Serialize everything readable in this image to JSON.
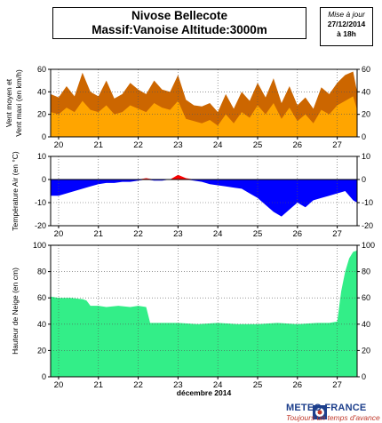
{
  "header": {
    "title_line1": "Nivose Bellecote",
    "title_line2": "Massif:Vanoise Altitude:3000m",
    "update_label": "Mise à jour",
    "update_date": "27/12/2014",
    "update_time": "à 18h"
  },
  "footer": {
    "logo_name": "METEO FRANCE",
    "logo_slogan": "Toujours un temps d'avance",
    "logo_icon": "meteo-france-logo"
  },
  "colors": {
    "wind_max": "#cc6600",
    "wind_mean": "#ffa500",
    "temp_cold": "#0000ff",
    "temp_warm": "#ff0000",
    "snow": "#33ee88"
  },
  "chart_data": [
    {
      "type": "area",
      "id": "wind",
      "ylabel_line1": "Vent moyen et",
      "ylabel_line2": "Vent maxi (en km/h)",
      "ylim": [
        0,
        60
      ],
      "yticks": [
        0,
        20,
        40,
        60
      ],
      "x_day_start": 19.8,
      "x_day_end": 27.5,
      "day_ticks": [
        20,
        21,
        22,
        23,
        24,
        25,
        26,
        27
      ],
      "grid": true,
      "series": [
        {
          "name": "max",
          "x": [
            19.8,
            20.0,
            20.2,
            20.4,
            20.6,
            20.8,
            21.0,
            21.2,
            21.4,
            21.6,
            21.8,
            22.0,
            22.2,
            22.4,
            22.6,
            22.8,
            23.0,
            23.2,
            23.4,
            23.6,
            23.8,
            24.0,
            24.2,
            24.4,
            24.6,
            24.8,
            25.0,
            25.2,
            25.4,
            25.6,
            25.8,
            26.0,
            26.2,
            26.4,
            26.6,
            26.8,
            27.0,
            27.2,
            27.4,
            27.5
          ],
          "values": [
            38,
            35,
            45,
            36,
            57,
            40,
            36,
            50,
            34,
            38,
            48,
            42,
            38,
            50,
            42,
            40,
            55,
            33,
            28,
            27,
            30,
            22,
            38,
            25,
            40,
            32,
            48,
            35,
            52,
            30,
            45,
            28,
            35,
            25,
            44,
            38,
            48,
            55,
            58,
            40
          ]
        },
        {
          "name": "mean",
          "x": [
            19.8,
            20.0,
            20.2,
            20.4,
            20.6,
            20.8,
            21.0,
            21.2,
            21.4,
            21.6,
            21.8,
            22.0,
            22.2,
            22.4,
            22.6,
            22.8,
            23.0,
            23.2,
            23.4,
            23.6,
            23.8,
            24.0,
            24.2,
            24.4,
            24.6,
            24.8,
            25.0,
            25.2,
            25.4,
            25.6,
            25.8,
            26.0,
            26.2,
            26.4,
            26.6,
            26.8,
            27.0,
            27.2,
            27.4,
            27.5
          ],
          "values": [
            22,
            20,
            26,
            22,
            32,
            24,
            22,
            28,
            20,
            22,
            28,
            25,
            22,
            30,
            26,
            24,
            32,
            16,
            14,
            12,
            15,
            10,
            20,
            12,
            22,
            17,
            28,
            20,
            30,
            16,
            26,
            14,
            20,
            12,
            24,
            20,
            28,
            32,
            36,
            24
          ]
        }
      ]
    },
    {
      "type": "area",
      "id": "temperature",
      "ylabel": "Température Air (en °C)",
      "ylim": [
        -20,
        10
      ],
      "yticks": [
        -20,
        -10,
        0,
        10
      ],
      "x_day_start": 19.8,
      "x_day_end": 27.5,
      "day_ticks": [
        20,
        21,
        22,
        23,
        24,
        25,
        26,
        27
      ],
      "grid": true,
      "series": [
        {
          "name": "temperature",
          "x": [
            19.8,
            20.0,
            20.2,
            20.4,
            20.6,
            20.8,
            21.0,
            21.2,
            21.4,
            21.6,
            21.8,
            22.0,
            22.2,
            22.4,
            22.6,
            22.8,
            23.0,
            23.2,
            23.4,
            23.6,
            23.8,
            24.0,
            24.2,
            24.4,
            24.6,
            24.8,
            25.0,
            25.2,
            25.4,
            25.6,
            25.8,
            26.0,
            26.2,
            26.4,
            26.6,
            26.8,
            27.0,
            27.2,
            27.4,
            27.5
          ],
          "values": [
            -7,
            -7,
            -6,
            -5,
            -4,
            -3,
            -2,
            -1.5,
            -1.5,
            -1,
            -1,
            -0.5,
            0.6,
            -0.5,
            -0.5,
            0,
            2,
            0.6,
            -0.5,
            -1,
            -2,
            -2.5,
            -3,
            -3.5,
            -4,
            -6,
            -8,
            -11,
            -14,
            -16,
            -13,
            -10,
            -12,
            -9,
            -8,
            -7,
            -6,
            -5,
            -9,
            -10
          ]
        }
      ]
    },
    {
      "type": "area",
      "id": "snow",
      "xlabel": "décembre 2014",
      "ylabel": "Hauteur de Neige (en cm)",
      "ylim": [
        0,
        100
      ],
      "yticks": [
        0,
        20,
        40,
        60,
        80,
        100
      ],
      "x_day_start": 19.8,
      "x_day_end": 27.5,
      "day_ticks": [
        20,
        21,
        22,
        23,
        24,
        25,
        26,
        27
      ],
      "grid": true,
      "series": [
        {
          "name": "snow",
          "x": [
            19.8,
            20.0,
            20.3,
            20.6,
            20.7,
            20.8,
            21.0,
            21.2,
            21.5,
            21.8,
            22.0,
            22.2,
            22.3,
            22.5,
            23.0,
            23.5,
            24.0,
            24.5,
            25.0,
            25.5,
            26.0,
            26.5,
            26.8,
            27.0,
            27.1,
            27.2,
            27.3,
            27.4,
            27.5
          ],
          "values": [
            61,
            60,
            60,
            59,
            58,
            54,
            54,
            53,
            54,
            53,
            54,
            53,
            41,
            41,
            41,
            40,
            41,
            40,
            40,
            41,
            40,
            41,
            41,
            42,
            65,
            80,
            90,
            95,
            96
          ]
        }
      ]
    }
  ]
}
